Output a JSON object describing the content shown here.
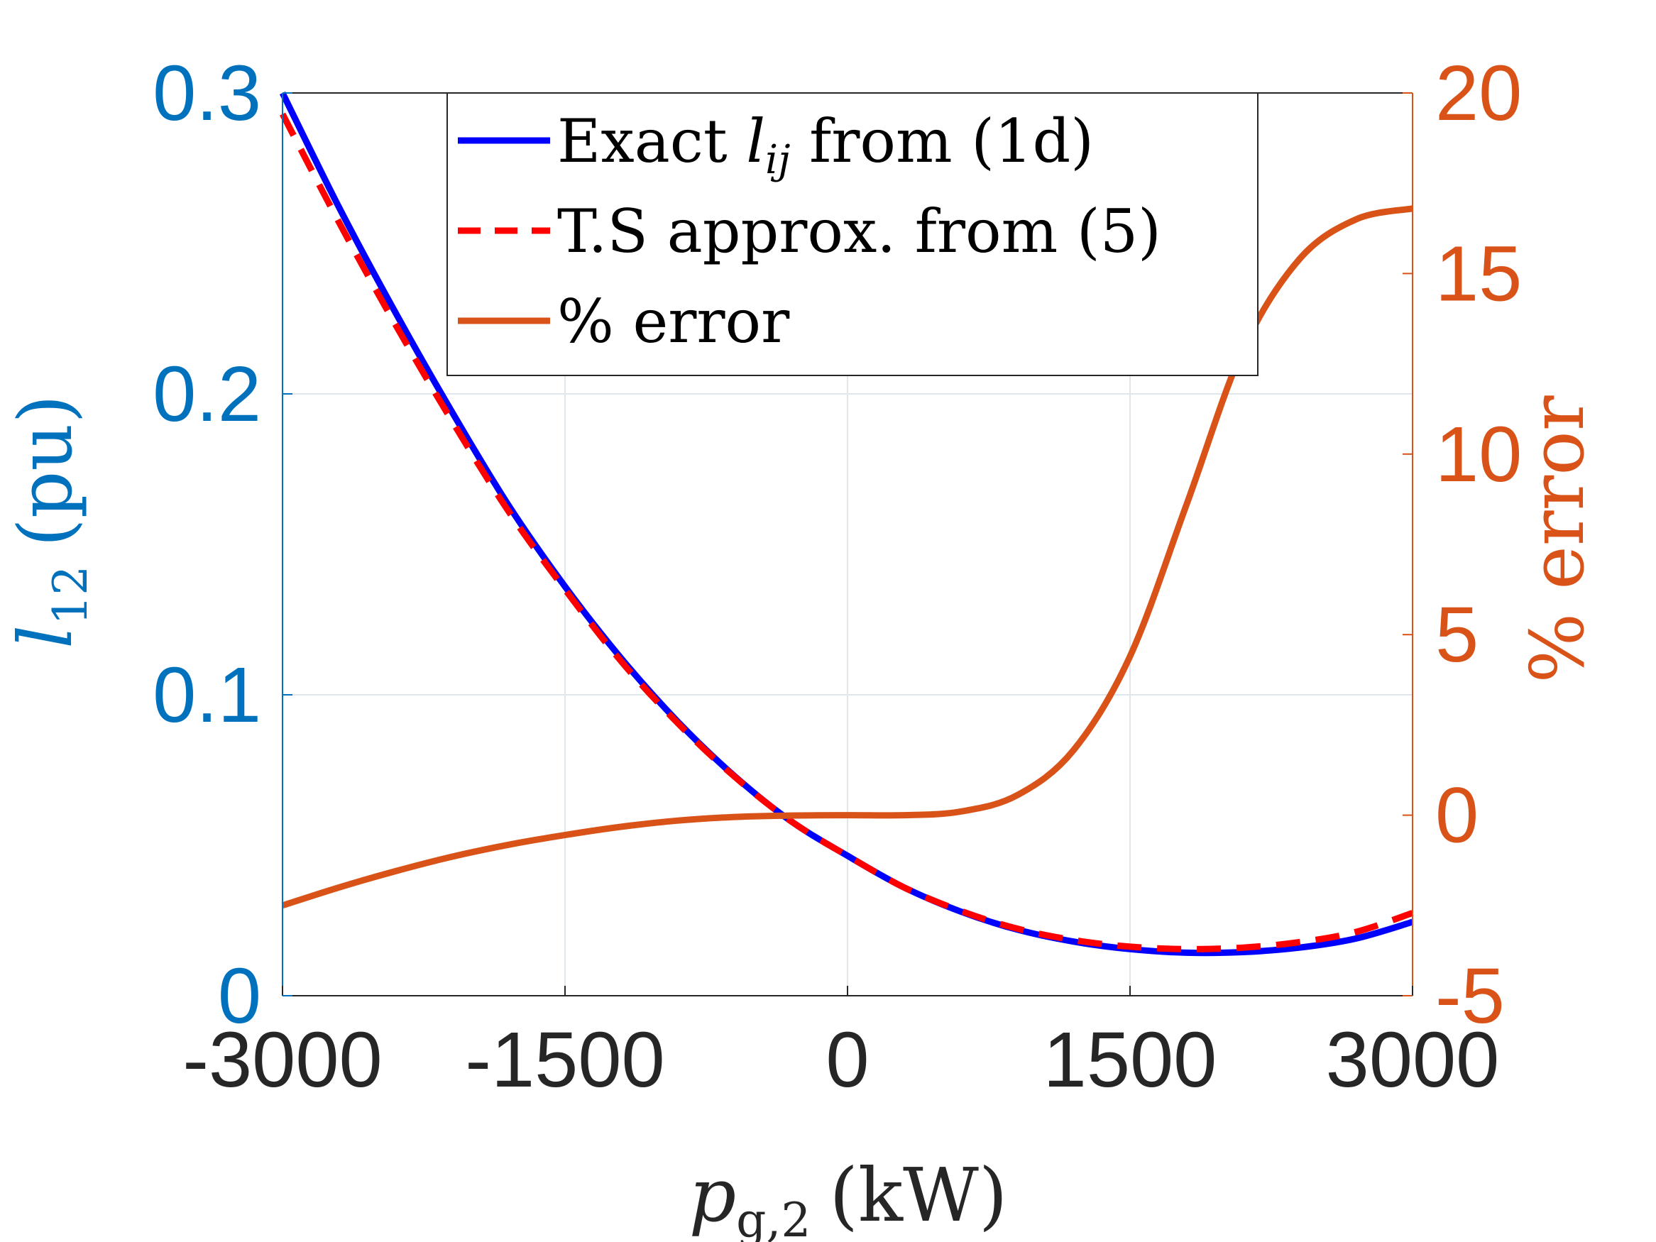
{
  "chart_data": {
    "type": "line",
    "x": {
      "label_var": "p",
      "label_sub": "g,2",
      "label_unit": "(kW)",
      "ticks": [
        "-3000",
        "-1500",
        "0",
        "1500",
        "3000"
      ],
      "range": [
        -3000,
        3000
      ]
    },
    "y_left": {
      "label_var": "l",
      "label_sub": "12",
      "label_unit": "(pu)",
      "ticks": [
        "0",
        "0.1",
        "0.2",
        "0.3"
      ],
      "range": [
        0,
        0.3
      ],
      "color": "#0072BD"
    },
    "y_right": {
      "label": "% error",
      "ticks": [
        "-5",
        "0",
        "5",
        "10",
        "15",
        "20"
      ],
      "range": [
        -5,
        20
      ],
      "color": "#D95319"
    },
    "grid": true,
    "legend_position": "top-center",
    "series": [
      {
        "name": "Exact l_ij from (1d)",
        "legend_prefix": "Exact ",
        "legend_var": "l",
        "legend_sub": "ij",
        "legend_suffix": " from (1d)",
        "axis": "left",
        "color": "#0000FF",
        "style": "solid",
        "x": [
          -3000,
          -2700,
          -2400,
          -2100,
          -1800,
          -1500,
          -1200,
          -900,
          -600,
          -300,
          0,
          300,
          600,
          900,
          1200,
          1500,
          1800,
          2100,
          2400,
          2700,
          3000
        ],
        "y": [
          0.3,
          0.262,
          0.227,
          0.194,
          0.163,
          0.136,
          0.112,
          0.091,
          0.073,
          0.058,
          0.0465,
          0.036,
          0.028,
          0.022,
          0.018,
          0.0155,
          0.0143,
          0.0145,
          0.016,
          0.019,
          0.0245
        ]
      },
      {
        "name": "T.S approx. from (5)",
        "legend_prefix": "T.S approx. from (5)",
        "axis": "left",
        "color": "#FF0000",
        "style": "dashed",
        "x": [
          -3000,
          -2700,
          -2400,
          -2100,
          -1800,
          -1500,
          -1200,
          -900,
          -600,
          -300,
          0,
          300,
          600,
          900,
          1200,
          1500,
          1800,
          2100,
          2400,
          2700,
          3000
        ],
        "y": [
          0.293,
          0.257,
          0.223,
          0.191,
          0.161,
          0.135,
          0.111,
          0.0905,
          0.0728,
          0.058,
          0.0465,
          0.036,
          0.0282,
          0.0223,
          0.0185,
          0.0163,
          0.0155,
          0.016,
          0.0178,
          0.0212,
          0.0275
        ]
      },
      {
        "name": "% error",
        "legend_prefix": "% error",
        "axis": "right",
        "color": "#D95319",
        "style": "solid",
        "x": [
          -3000,
          -2700,
          -2400,
          -2100,
          -1800,
          -1500,
          -1200,
          -900,
          -600,
          -300,
          0,
          300,
          600,
          900,
          1200,
          1500,
          1800,
          2100,
          2400,
          2700,
          3000
        ],
        "y": [
          -2.5,
          -2.0,
          -1.55,
          -1.15,
          -0.82,
          -0.55,
          -0.32,
          -0.15,
          -0.05,
          -0.01,
          0.0,
          0.0,
          0.1,
          0.55,
          1.8,
          4.4,
          8.6,
          12.9,
          15.4,
          16.5,
          16.8
        ]
      }
    ]
  }
}
